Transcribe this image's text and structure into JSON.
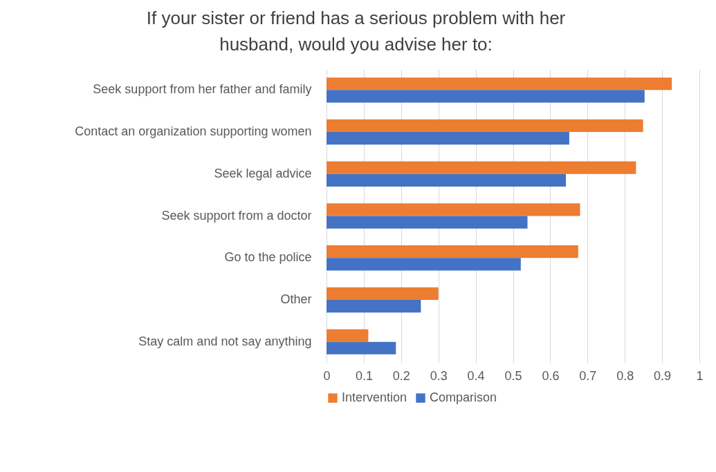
{
  "chart_data": {
    "type": "bar",
    "orientation": "horizontal",
    "title": "If your sister or friend has a serious problem with her husband, would you advise her to:",
    "categories": [
      "Seek support from her father and family",
      "Contact an organization supporting women",
      "Seek legal advice",
      "Seek support from a doctor",
      "Go to the police",
      "Other",
      "Stay calm and not say anything"
    ],
    "series": [
      {
        "name": "Intervention",
        "color": "#ed7d31",
        "values": [
          0.926,
          0.849,
          0.83,
          0.68,
          0.675,
          0.3,
          0.112
        ]
      },
      {
        "name": "Comparison",
        "color": "#4472c4",
        "values": [
          0.853,
          0.651,
          0.642,
          0.539,
          0.521,
          0.253,
          0.186
        ]
      }
    ],
    "xlim": [
      0,
      1
    ],
    "xticks": [
      0,
      0.1,
      0.2,
      0.3,
      0.4,
      0.5,
      0.6,
      0.7,
      0.8,
      0.9,
      1
    ],
    "grid": true,
    "legend": "bottom"
  }
}
